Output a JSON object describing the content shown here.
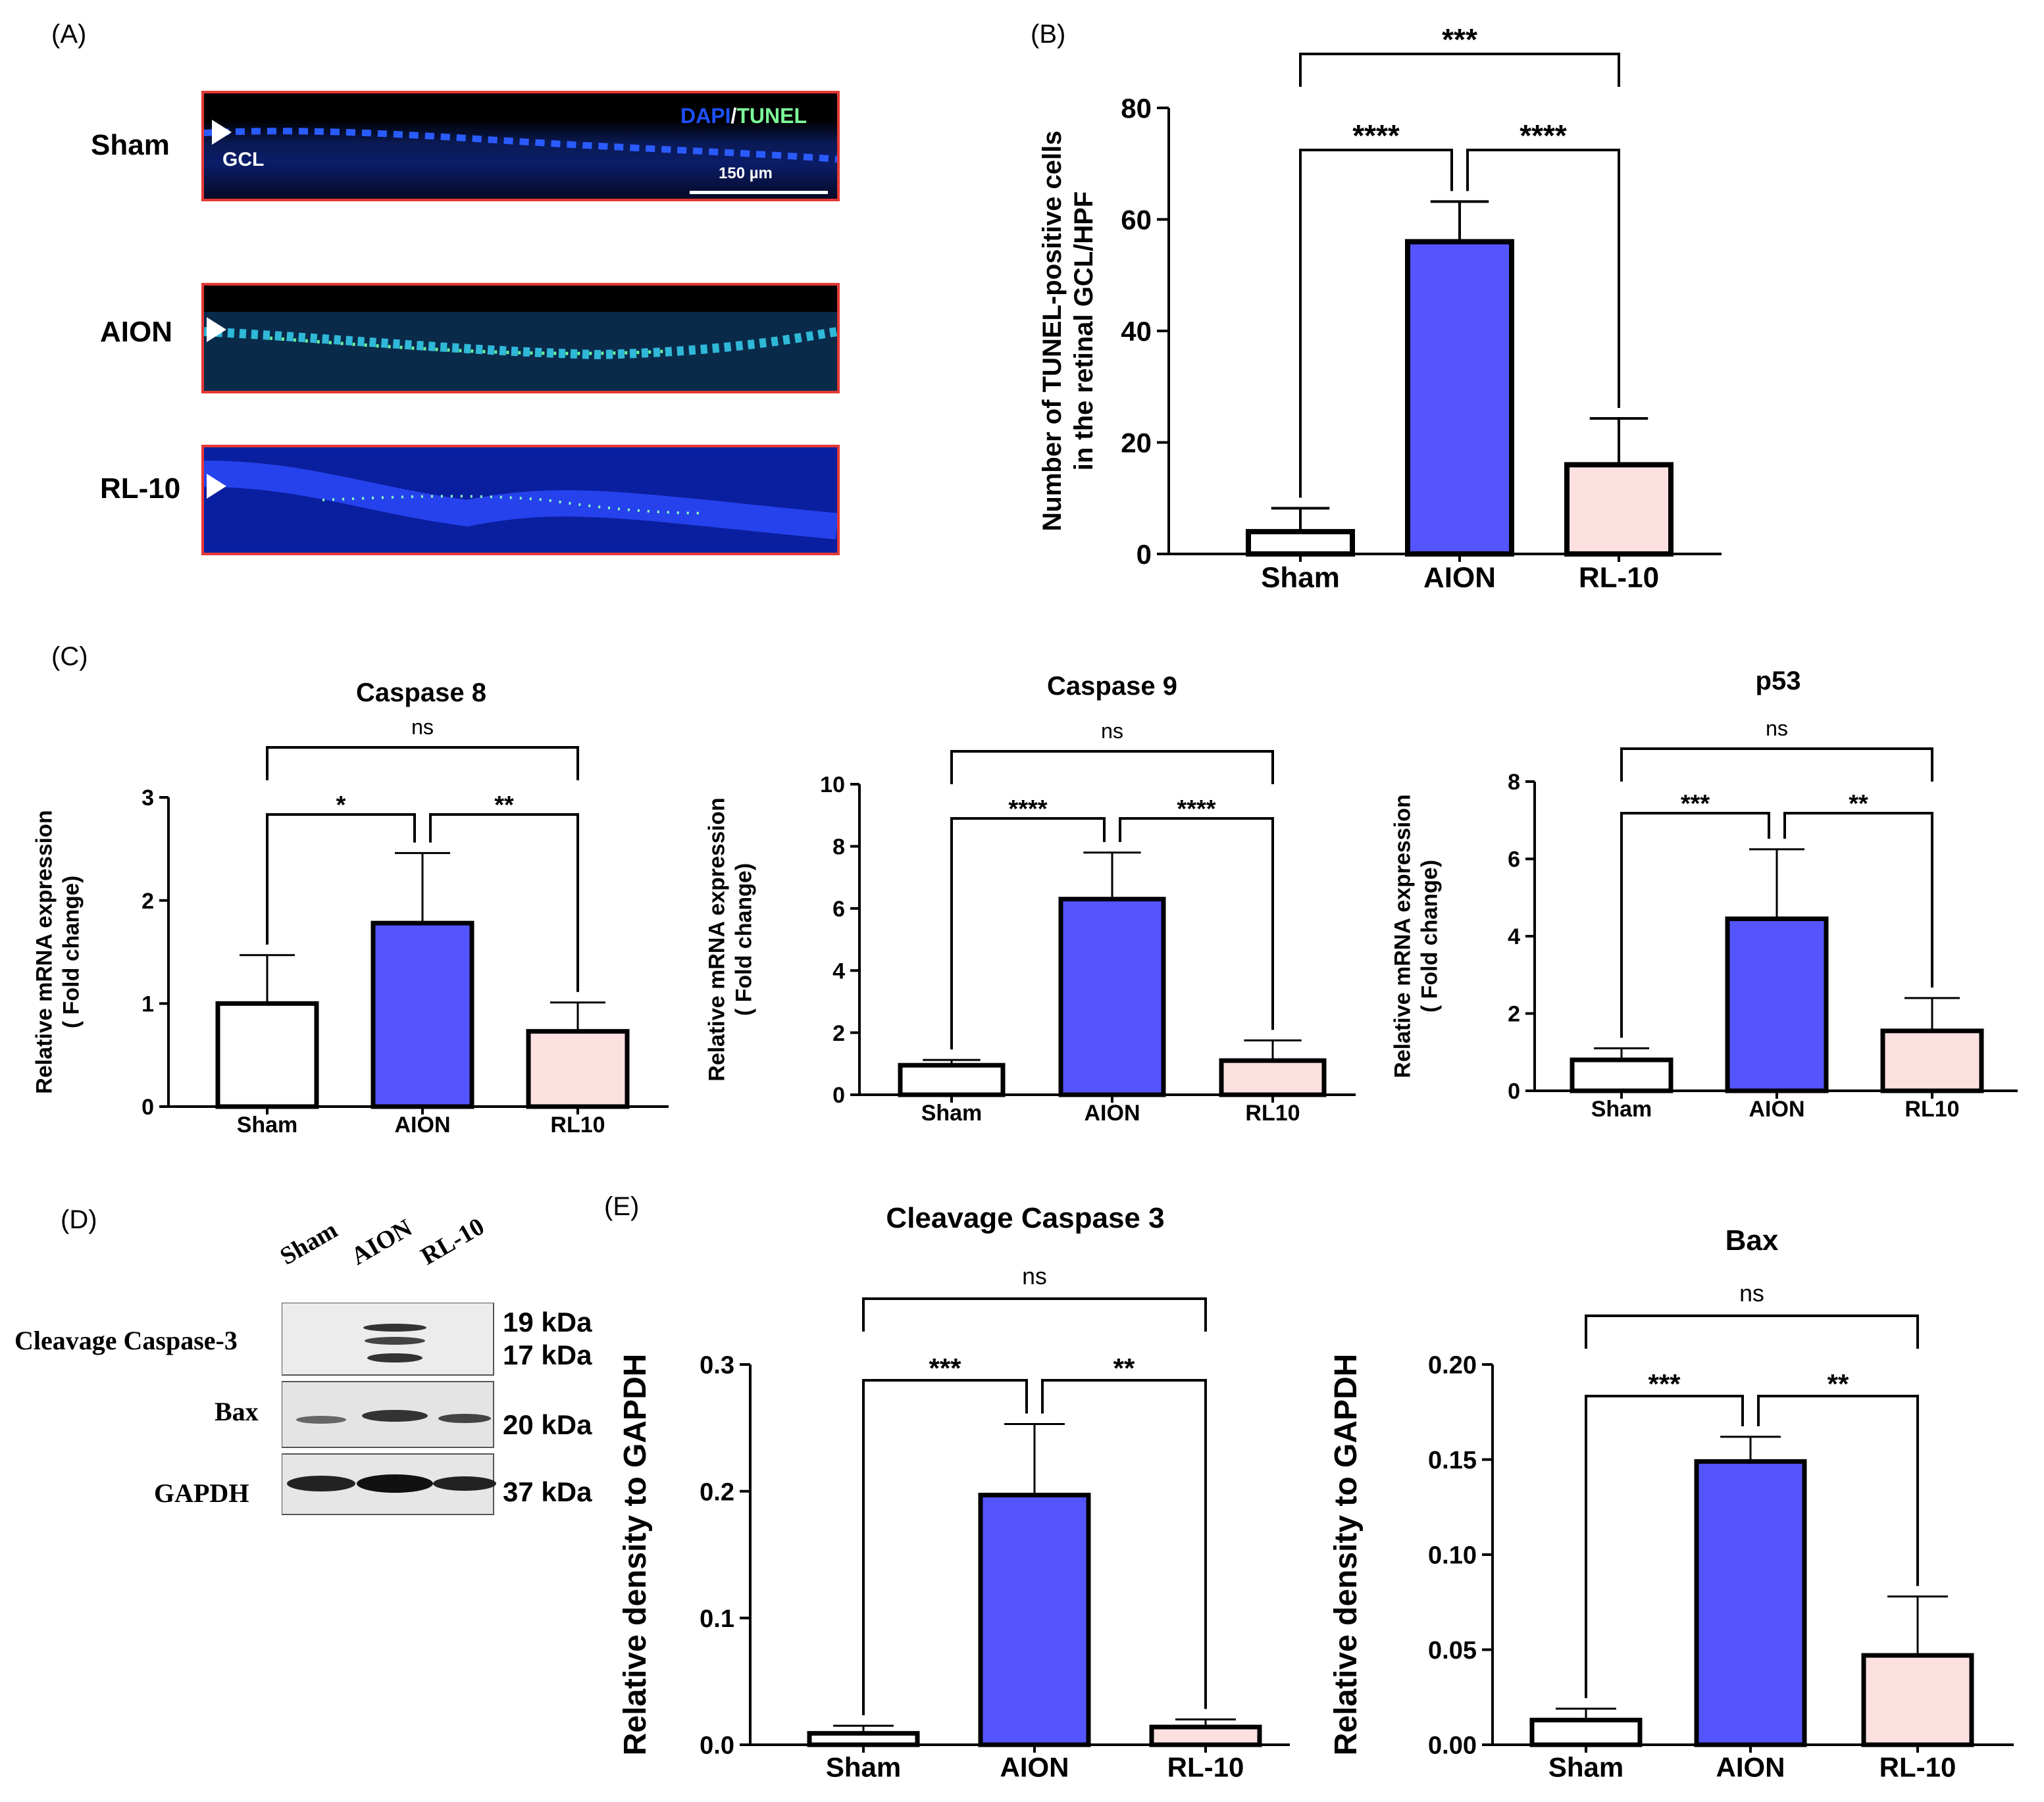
{
  "panel_letters": {
    "a": "(A)",
    "b": "(B)",
    "c": "(C)",
    "d": "(D)",
    "e": "(E)"
  },
  "panel_a": {
    "rows": [
      {
        "label": "Sham"
      },
      {
        "label": "AION"
      },
      {
        "label": "RL-10"
      }
    ],
    "legend_dapi": "DAPI",
    "legend_sep": "/",
    "legend_tunel": "TUNEL",
    "gcl_label": "GCL",
    "scalebar_label": "150 µm",
    "colors": {
      "border": "#e53935",
      "dapi": "#1e40ff",
      "tunel": "#7cfc9a"
    }
  },
  "colors": {
    "sham": "#ffffff",
    "aion": "#5555ff",
    "rl10": "#fde0e0",
    "axis": "#000000"
  },
  "chart_data": [
    {
      "id": "tunel",
      "type": "bar",
      "title": "",
      "categories": [
        "Sham",
        "AION",
        "RL-10"
      ],
      "values": [
        4,
        56,
        16
      ],
      "errors": [
        4.2,
        7.2,
        8.3
      ],
      "ylabel_lines": [
        "Number of TUNEL-positive cells",
        "in the retinal GCL/HPF"
      ],
      "yticks": [
        "0",
        "20",
        "40",
        "60",
        "80"
      ],
      "ylim": [
        0,
        80
      ],
      "significance": [
        {
          "pair": [
            0,
            1
          ],
          "label": "****"
        },
        {
          "pair": [
            1,
            2
          ],
          "label": "****"
        },
        {
          "pair": [
            0,
            2
          ],
          "label": "***"
        }
      ]
    },
    {
      "id": "casp8",
      "type": "bar",
      "title": "Caspase 8",
      "categories": [
        "Sham",
        "AION",
        "RL10"
      ],
      "values": [
        1.0,
        1.78,
        0.73
      ],
      "errors": [
        0.47,
        0.68,
        0.28
      ],
      "ylabel_lines": [
        "Relative mRNA expression",
        "( Fold change)"
      ],
      "yticks": [
        "0",
        "1",
        "2",
        "3"
      ],
      "ylim": [
        0,
        3
      ],
      "significance": [
        {
          "pair": [
            0,
            1
          ],
          "label": "*"
        },
        {
          "pair": [
            1,
            2
          ],
          "label": "**"
        },
        {
          "pair": [
            0,
            2
          ],
          "label": "ns"
        }
      ]
    },
    {
      "id": "casp9",
      "type": "bar",
      "title": "Caspase 9",
      "categories": [
        "Sham",
        "AION",
        "RL10"
      ],
      "values": [
        0.95,
        6.3,
        1.1
      ],
      "errors": [
        0.17,
        1.5,
        0.65
      ],
      "ylabel_lines": [
        "Relative mRNA expression",
        "( Fold change)"
      ],
      "yticks": [
        "0",
        "2",
        "4",
        "6",
        "8",
        "10"
      ],
      "ylim": [
        0,
        10
      ],
      "significance": [
        {
          "pair": [
            0,
            1
          ],
          "label": "****"
        },
        {
          "pair": [
            1,
            2
          ],
          "label": "****"
        },
        {
          "pair": [
            0,
            2
          ],
          "label": "ns"
        }
      ]
    },
    {
      "id": "p53",
      "type": "bar",
      "title": "p53",
      "categories": [
        "Sham",
        "AION",
        "RL10"
      ],
      "values": [
        0.8,
        4.45,
        1.55
      ],
      "errors": [
        0.3,
        1.8,
        0.85
      ],
      "ylabel_lines": [
        "Relative mRNA expression",
        "( Fold change)"
      ],
      "yticks": [
        "0",
        "2",
        "4",
        "6",
        "8"
      ],
      "ylim": [
        0,
        8
      ],
      "significance": [
        {
          "pair": [
            0,
            1
          ],
          "label": "***"
        },
        {
          "pair": [
            1,
            2
          ],
          "label": "**"
        },
        {
          "pair": [
            0,
            2
          ],
          "label": "ns"
        }
      ]
    },
    {
      "id": "cc3",
      "type": "bar",
      "title": "Cleavage Caspase 3",
      "categories": [
        "Sham",
        "AION",
        "RL-10"
      ],
      "values": [
        0.009,
        0.197,
        0.014
      ],
      "errors": [
        0.006,
        0.056,
        0.006
      ],
      "ylabel_lines": [
        "Relative density to GAPDH"
      ],
      "yticks": [
        "0.0",
        "0.1",
        "0.2",
        "0.3"
      ],
      "ylim": [
        0,
        0.3
      ],
      "significance": [
        {
          "pair": [
            0,
            1
          ],
          "label": "***"
        },
        {
          "pair": [
            1,
            2
          ],
          "label": "**"
        },
        {
          "pair": [
            0,
            2
          ],
          "label": "ns"
        }
      ]
    },
    {
      "id": "bax",
      "type": "bar",
      "title": "Bax",
      "categories": [
        "Sham",
        "AION",
        "RL-10"
      ],
      "values": [
        0.013,
        0.149,
        0.047
      ],
      "errors": [
        0.006,
        0.013,
        0.031
      ],
      "ylabel_lines": [
        "Relative density to GAPDH"
      ],
      "yticks": [
        "0.00",
        "0.05",
        "0.10",
        "0.15",
        "0.20"
      ],
      "ylim": [
        0,
        0.2
      ],
      "significance": [
        {
          "pair": [
            0,
            1
          ],
          "label": "***"
        },
        {
          "pair": [
            1,
            2
          ],
          "label": "**"
        },
        {
          "pair": [
            0,
            2
          ],
          "label": "ns"
        }
      ]
    }
  ],
  "panel_d": {
    "lanes": [
      "Sham",
      "AION",
      "RL-10"
    ],
    "proteins": [
      "Cleavage Caspase-3",
      "Bax",
      "GAPDH"
    ],
    "kda": [
      "19 kDa",
      "17 kDa",
      "20 kDa",
      "37 kDa"
    ]
  }
}
